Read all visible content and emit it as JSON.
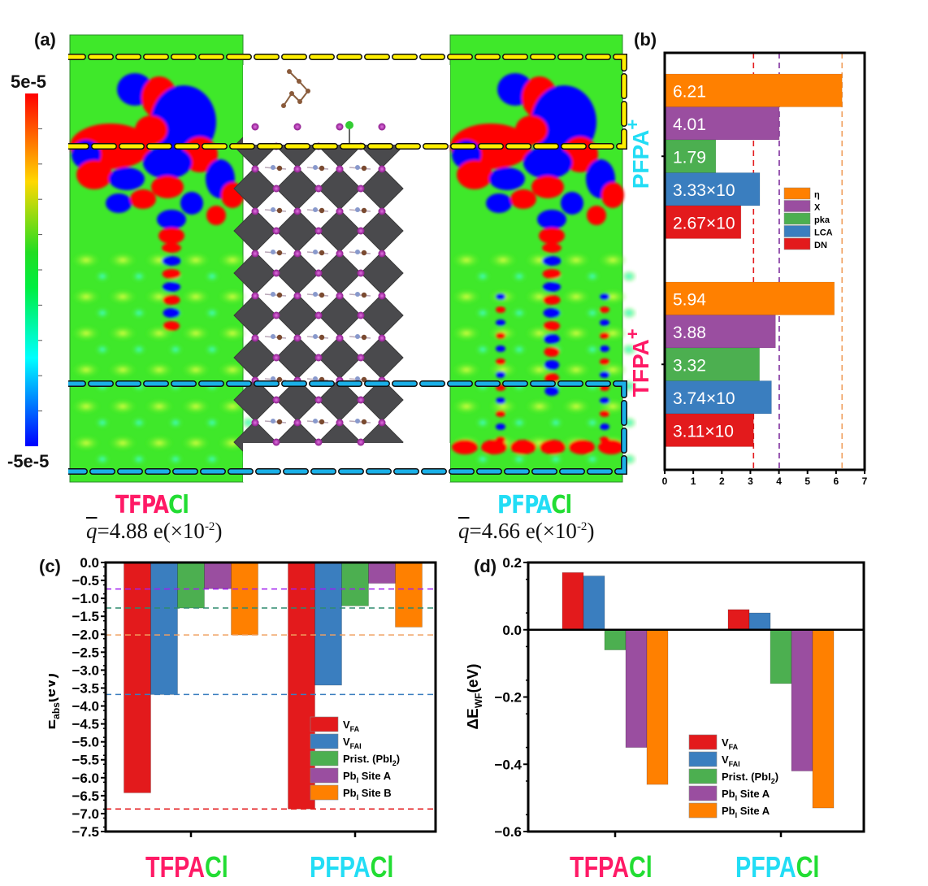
{
  "figure": {
    "panel_labels": [
      "(a)",
      "(b)",
      "(c)",
      "(d)"
    ]
  },
  "panel_a": {
    "colorbar": {
      "max_label": "5e-5",
      "min_label": "-5e-5",
      "ticks": 10,
      "colors": [
        "#0000ff",
        "#00ffff",
        "#00ff00",
        "#ffff00",
        "#ff0000"
      ]
    },
    "left_map": {
      "molecule": "TFPA",
      "halide": "Cl",
      "qbar_symbol": "q",
      "qbar_value": "=4.88 e(×10",
      "qbar_exp": "-2",
      "qbar_close": ")"
    },
    "right_map": {
      "molecule": "PFPA",
      "halide": "Cl",
      "qbar_symbol": "q",
      "qbar_value": "=4.66 e(×10",
      "qbar_exp": "-2",
      "qbar_close": ")"
    },
    "highlight_colors": {
      "top_box": "#ffee00",
      "bottom_box": "#1ab0e8"
    },
    "molecule_colors": {
      "TFPA": "#ff1a66",
      "PFPA": "#22ddf5",
      "Cl": "#22dd33"
    }
  },
  "chart_data": [
    {
      "id": "b",
      "type": "bar",
      "orientation": "horizontal",
      "groups": [
        "PFPA+",
        "TFPA+"
      ],
      "group_colors": [
        "#22ddf5",
        "#ff1a66"
      ],
      "series": [
        {
          "name": "η",
          "color": "#ff8000",
          "values": [
            6.21,
            5.94
          ],
          "labels": [
            "6.21",
            "5.94"
          ]
        },
        {
          "name": "X",
          "color": "#9a4ea0",
          "values": [
            4.01,
            3.88
          ],
          "labels": [
            "4.01",
            "3.88"
          ]
        },
        {
          "name": "pka",
          "color": "#4caf50",
          "values": [
            1.79,
            3.32
          ],
          "labels": [
            "1.79",
            "3.32"
          ]
        },
        {
          "name": "LCA",
          "color": "#3a7ebf",
          "values": [
            3.33,
            3.74
          ],
          "labels": [
            "3.33×10",
            "3.74×10"
          ]
        },
        {
          "name": "DN",
          "color": "#e31a1c",
          "values": [
            2.67,
            3.11
          ],
          "labels": [
            "2.67×10",
            "3.11×10"
          ]
        }
      ],
      "xlim": [
        0,
        7
      ],
      "xticks": [
        "0",
        "1",
        "2",
        "3",
        "4",
        "5",
        "6",
        "7"
      ],
      "reference_lines": [
        {
          "value": 3.11,
          "color": "#e31a1c"
        },
        {
          "value": 4.01,
          "color": "#7b2a9a"
        },
        {
          "value": 6.21,
          "color": "#f0a060"
        }
      ],
      "legend": "right-middle"
    },
    {
      "id": "c",
      "type": "bar",
      "categories": [
        "TFPACl",
        "PFPACl"
      ],
      "ylabel": "E",
      "ylabel_sub": "abs",
      "ylabel_unit": "(eV)",
      "ylim": [
        -7.5,
        0.0
      ],
      "yticks": [
        "0.0",
        "-0.5",
        "-1.0",
        "-1.5",
        "-2.0",
        "-2.5",
        "-3.0",
        "-3.5",
        "-4.0",
        "-4.5",
        "-5.0",
        "-5.5",
        "-6.0",
        "-6.5",
        "-7.0",
        "-7.5"
      ],
      "series": [
        {
          "name": "V",
          "sub": "FA",
          "color": "#e31a1c",
          "values": [
            -6.42,
            -6.87
          ]
        },
        {
          "name": "V",
          "sub": "FAI",
          "color": "#3a7ebf",
          "values": [
            -3.68,
            -3.42
          ]
        },
        {
          "name": "Prist. (PbI",
          "sub": "2",
          "suffix": ")",
          "color": "#4caf50",
          "values": [
            -1.27,
            -1.21
          ]
        },
        {
          "name": "Pb",
          "sub": "I",
          "suffix": " Site A",
          "color": "#9a4ea0",
          "values": [
            -0.73,
            -0.58
          ]
        },
        {
          "name": "Pb",
          "sub": "I",
          "suffix": " Site B",
          "color": "#ff8000",
          "values": [
            -2.02,
            -1.8
          ]
        }
      ],
      "reference_lines": [
        {
          "value": -0.74,
          "color": "#a020f0"
        },
        {
          "value": -1.27,
          "color": "#2e8b6e"
        },
        {
          "value": -2.02,
          "color": "#f0a060"
        },
        {
          "value": -3.68,
          "color": "#3a7ebf"
        },
        {
          "value": -6.87,
          "color": "#e31a1c"
        }
      ],
      "legend": "bottom-right"
    },
    {
      "id": "d",
      "type": "bar",
      "categories": [
        "TFPACl",
        "PFPACl"
      ],
      "ylabel": "ΔE",
      "ylabel_sub": "WF",
      "ylabel_unit": "(eV)",
      "ylim": [
        -0.6,
        0.2
      ],
      "yticks": [
        "0.2",
        "0.0",
        "-0.2",
        "-0.4",
        "-0.6"
      ],
      "series": [
        {
          "name": "V",
          "sub": "FA",
          "color": "#e31a1c",
          "values": [
            0.17,
            0.06
          ]
        },
        {
          "name": "V",
          "sub": "FAI",
          "color": "#3a7ebf",
          "values": [
            0.16,
            0.05
          ]
        },
        {
          "name": "Prist. (PbI",
          "sub": "2",
          "suffix": ")",
          "color": "#4caf50",
          "values": [
            -0.06,
            -0.16
          ]
        },
        {
          "name": "Pb",
          "sub": "I",
          "suffix": " Site A",
          "color": "#9a4ea0",
          "values": [
            -0.35,
            -0.42
          ]
        },
        {
          "name": "Pb",
          "sub": "I",
          "suffix": " Site A",
          "color": "#ff8000",
          "values": [
            -0.46,
            -0.53
          ]
        }
      ],
      "legend": "bottom-center"
    }
  ]
}
